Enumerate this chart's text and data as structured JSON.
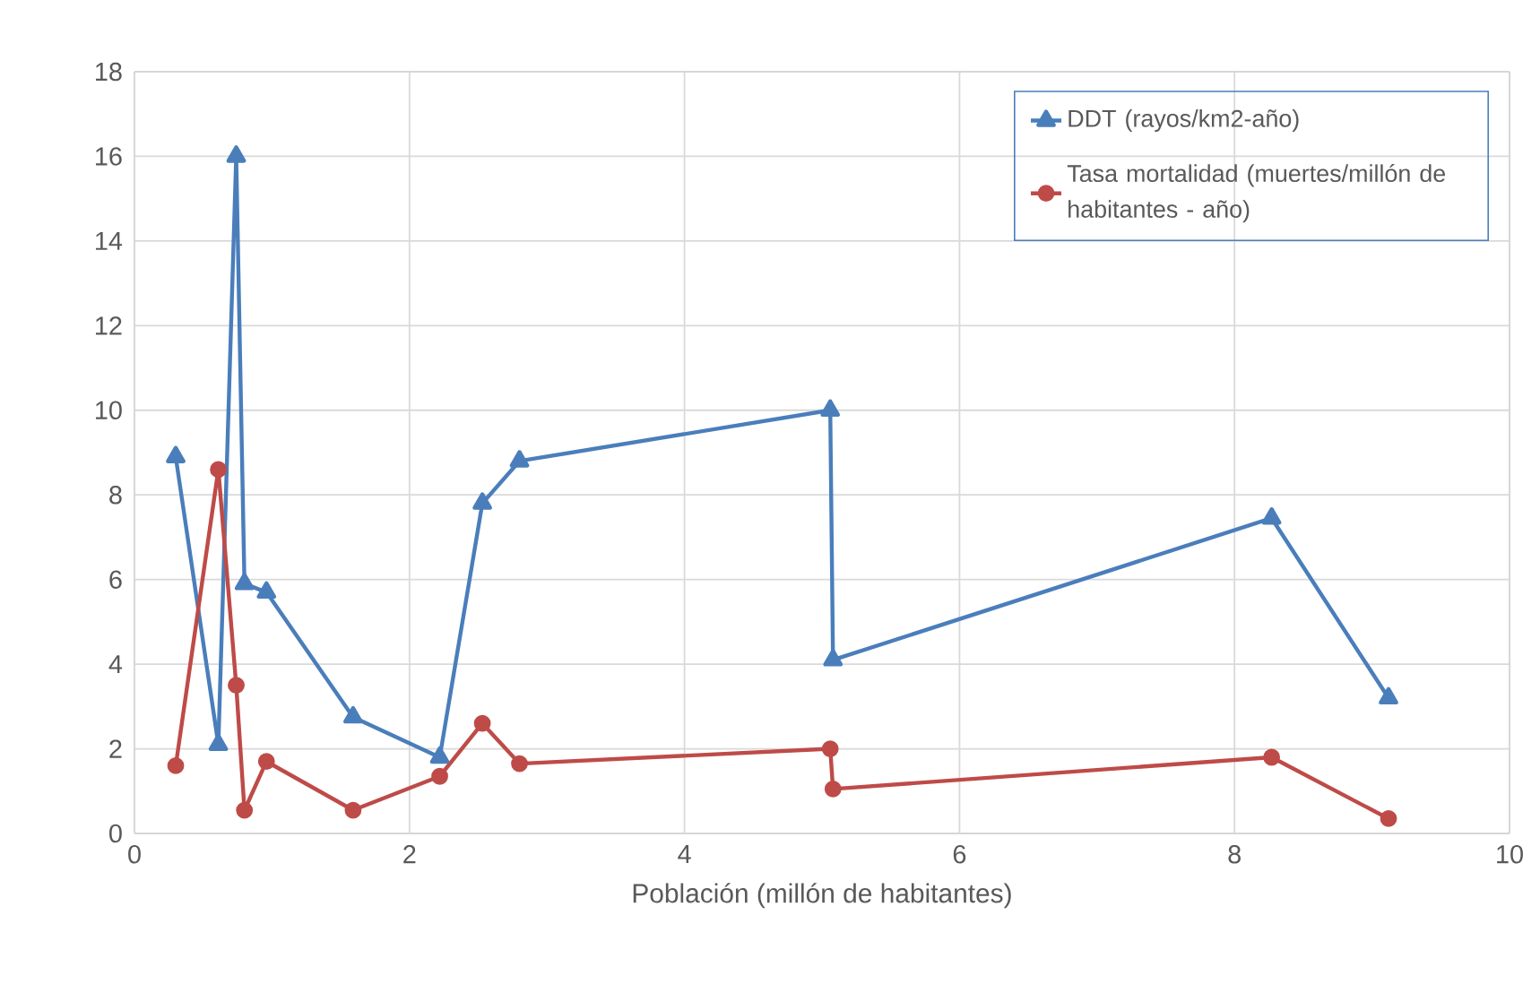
{
  "chart_data": {
    "type": "line",
    "xlabel": "Población (millón de habitantes)",
    "x": [
      0.3,
      0.61,
      0.74,
      0.8,
      0.96,
      1.59,
      2.22,
      2.53,
      2.8,
      5.06,
      5.08,
      8.27,
      9.12
    ],
    "series": [
      {
        "name": "DDT (rayos/km2-año)",
        "color": "#4a7ebb",
        "marker": "triangle",
        "values": [
          8.9,
          2.1,
          16.0,
          5.9,
          5.7,
          2.75,
          1.8,
          7.8,
          8.8,
          10.0,
          4.1,
          7.45,
          3.2
        ]
      },
      {
        "name": "Tasa mortalidad (muertes/millón de habitantes - año)",
        "color": "#be4b48",
        "marker": "circle",
        "values": [
          1.6,
          8.6,
          3.5,
          0.55,
          1.7,
          0.55,
          1.35,
          2.6,
          1.65,
          2.0,
          1.05,
          1.8,
          0.35
        ]
      }
    ],
    "xlim": [
      0,
      10
    ],
    "xticks": [
      0,
      2,
      4,
      6,
      8,
      10
    ],
    "ylim": [
      0,
      18
    ],
    "yticks": [
      0,
      2,
      4,
      6,
      8,
      10,
      12,
      14,
      16,
      18
    ],
    "grid": true,
    "legend": "top right",
    "line_style": "solid"
  }
}
